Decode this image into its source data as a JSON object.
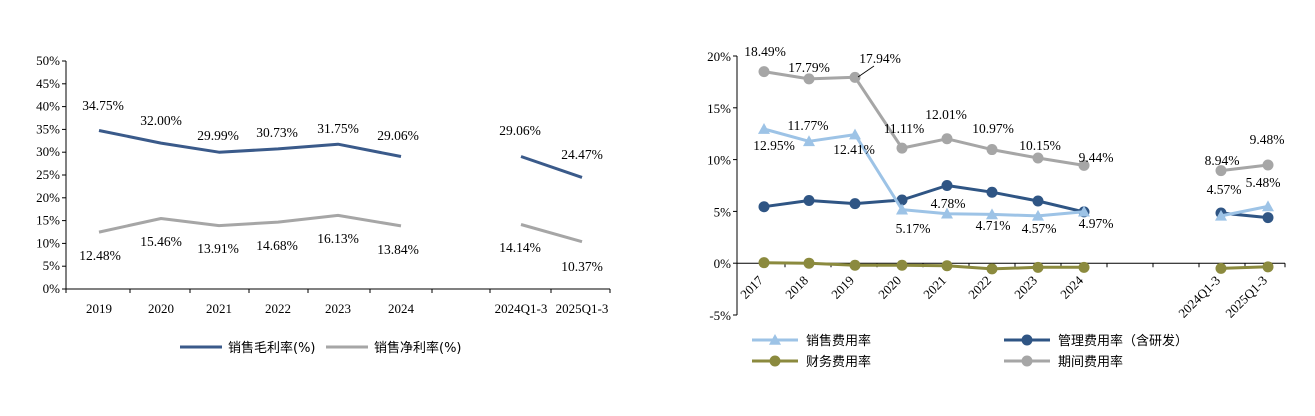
{
  "chart_data": [
    {
      "type": "line",
      "title": "",
      "xlabel": "",
      "ylabel": "",
      "ylim": [
        0,
        50
      ],
      "y_step": 5,
      "y_unit": "%",
      "categories": [
        "2019",
        "2020",
        "2021",
        "2022",
        "2023",
        "2024",
        "2024Q1-3",
        "2025Q1-3"
      ],
      "segments": [
        [
          0,
          5
        ],
        [
          6,
          7
        ]
      ],
      "legend_position": "bottom",
      "grid": false,
      "series": [
        {
          "name": "销售毛利率(%)",
          "color": "#3a5a8a",
          "marker": "none",
          "values": [
            34.75,
            32.0,
            29.99,
            30.73,
            31.75,
            29.06,
            29.06,
            24.47
          ],
          "labels": [
            "34.75%",
            "32.00%",
            "29.99%",
            "30.73%",
            "31.75%",
            "29.06%",
            "29.06%",
            "24.47%"
          ]
        },
        {
          "name": "销售净利率(%)",
          "color": "#a6a6a6",
          "marker": "none",
          "values": [
            12.48,
            15.46,
            13.91,
            14.68,
            16.13,
            13.84,
            14.14,
            10.37
          ],
          "labels": [
            "12.48%",
            "15.46%",
            "13.91%",
            "14.68%",
            "16.13%",
            "13.84%",
            "14.14%",
            "10.37%"
          ]
        }
      ]
    },
    {
      "type": "line",
      "title": "",
      "xlabel": "",
      "ylabel": "",
      "ylim": [
        -5,
        20
      ],
      "y_step": 5,
      "y_unit": "%",
      "categories": [
        "2017",
        "2018",
        "2019",
        "2020",
        "2021",
        "2022",
        "2023",
        "2024",
        "2024Q1-3",
        "2025Q1-3"
      ],
      "segments": [
        [
          0,
          7
        ],
        [
          8,
          9
        ]
      ],
      "legend_position": "bottom",
      "grid": false,
      "series": [
        {
          "name": "销售费用率",
          "color": "#9dc3e6",
          "marker": "triangle",
          "values": [
            12.95,
            11.77,
            12.41,
            5.17,
            4.78,
            4.71,
            4.57,
            4.97,
            4.57,
            5.48
          ],
          "labels": [
            "12.95%",
            "11.77%",
            "12.41%",
            "5.17%",
            "4.78%",
            "4.71%",
            "4.57%",
            "4.97%",
            "4.57%",
            "5.48%"
          ]
        },
        {
          "name": "管理费用率（含研发）",
          "color": "#2f5584",
          "marker": "circle",
          "values": [
            5.45,
            6.05,
            5.75,
            6.1,
            7.5,
            6.85,
            6.0,
            4.95,
            4.85,
            4.4
          ],
          "labels": []
        },
        {
          "name": "财务费用率",
          "color": "#8b8a3e",
          "marker": "circle",
          "values": [
            0.05,
            0.0,
            -0.2,
            -0.2,
            -0.25,
            -0.55,
            -0.4,
            -0.4,
            -0.5,
            -0.35
          ],
          "labels": []
        },
        {
          "name": "期间费用率",
          "color": "#a6a6a6",
          "marker": "circle",
          "values": [
            18.49,
            17.79,
            17.94,
            11.11,
            12.01,
            10.97,
            10.15,
            9.44,
            8.94,
            9.48
          ],
          "labels": [
            "18.49%",
            "17.79%",
            "17.94%",
            "11.11%",
            "12.01%",
            "10.97%",
            "10.15%",
            "9.44%",
            "8.94%",
            "9.48%"
          ]
        }
      ]
    }
  ]
}
